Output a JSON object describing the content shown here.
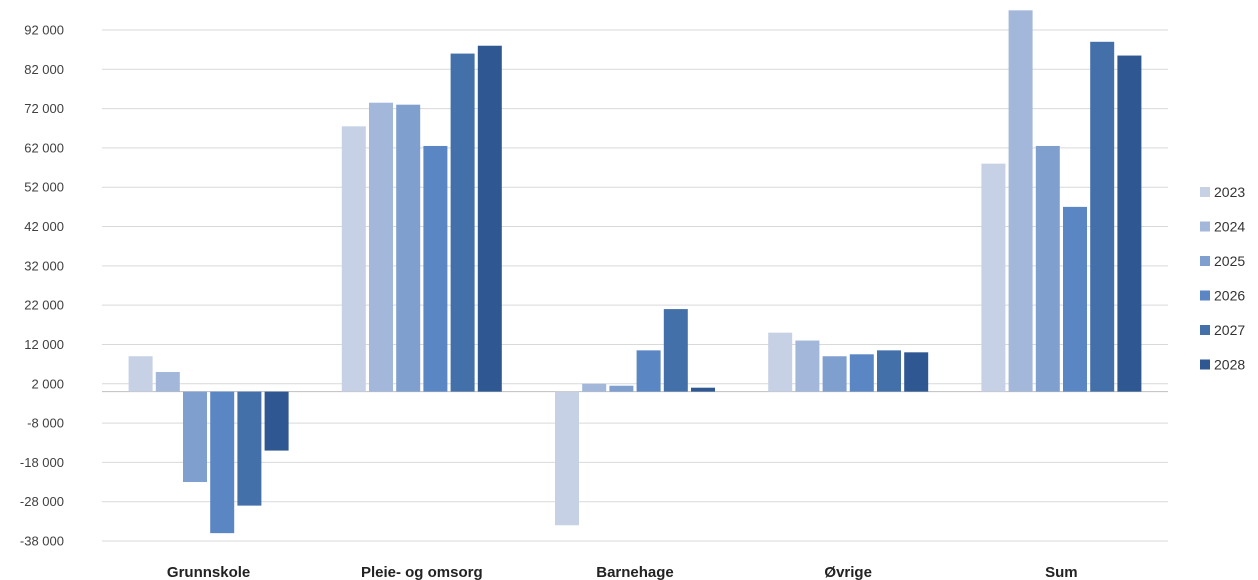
{
  "chart_data": {
    "type": "bar",
    "title": "",
    "xlabel": "",
    "ylabel": "",
    "categories": [
      "Grunnskole",
      "Pleie- og omsorg",
      "Barnehage",
      "Øvrige",
      "Sum"
    ],
    "y_ticks": [
      92000,
      82000,
      72000,
      62000,
      52000,
      42000,
      32000,
      22000,
      12000,
      2000,
      -8000,
      -18000,
      -28000,
      -38000
    ],
    "y_tick_labels": [
      "92 000",
      "82 000",
      "72 000",
      "62 000",
      "52 000",
      "42 000",
      "32 000",
      "22 000",
      "12 000",
      "2 000",
      "-8 000",
      "-18 000",
      "-28 000",
      "-38 000"
    ],
    "ylim": [
      -38000,
      97000
    ],
    "grid": true,
    "legend_position": "right",
    "series": [
      {
        "name": "2023",
        "color": "#c6d1e6",
        "values": [
          9000,
          67500,
          -34000,
          15000,
          58000
        ]
      },
      {
        "name": "2024",
        "color": "#a3b7da",
        "values": [
          5000,
          73500,
          2000,
          13000,
          97000
        ]
      },
      {
        "name": "2025",
        "color": "#7f9fcf",
        "values": [
          -23000,
          73000,
          1500,
          9000,
          62500
        ]
      },
      {
        "name": "2026",
        "color": "#5b86c4",
        "values": [
          -36000,
          62500,
          10500,
          9500,
          47000
        ]
      },
      {
        "name": "2027",
        "color": "#4470aa",
        "values": [
          -29000,
          86000,
          21000,
          10500,
          89000
        ]
      },
      {
        "name": "2028",
        "color": "#2f5792",
        "values": [
          -15000,
          88000,
          1000,
          10000,
          85500
        ]
      }
    ]
  }
}
